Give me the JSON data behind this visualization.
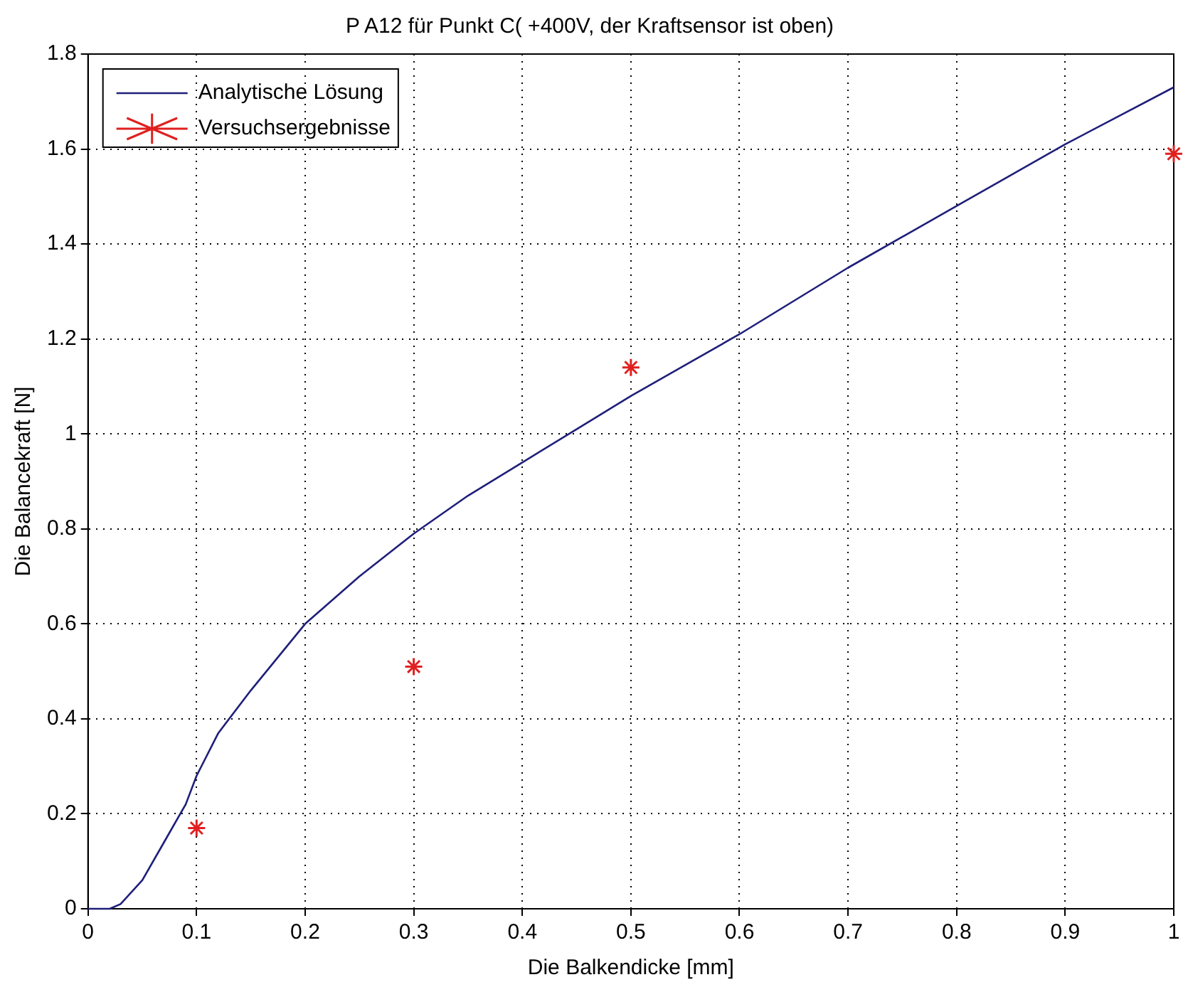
{
  "chart_data": {
    "type": "line",
    "title": "P A12 für Punkt C( +400V, der Kraftsensor ist oben)",
    "xlabel": "Die Balkendicke [mm]",
    "ylabel": "Die Balancekraft [N]",
    "xlim": [
      0,
      1
    ],
    "ylim": [
      0,
      1.8
    ],
    "xticks": [
      0,
      0.1,
      0.2,
      0.3,
      0.4,
      0.5,
      0.6,
      0.7,
      0.8,
      0.9,
      1
    ],
    "yticks": [
      0,
      0.2,
      0.4,
      0.6,
      0.8,
      1,
      1.2,
      1.4,
      1.6,
      1.8
    ],
    "grid": true,
    "legend": "top left",
    "series": [
      {
        "name": "Analytische Lösung",
        "type": "line",
        "color": "#1f1f7a",
        "marker": "none",
        "line_style": "solid",
        "x": [
          0,
          0.02,
          0.03,
          0.05,
          0.07,
          0.09,
          0.1,
          0.12,
          0.15,
          0.2,
          0.25,
          0.3,
          0.35,
          0.4,
          0.45,
          0.5,
          0.6,
          0.7,
          0.8,
          0.9,
          1
        ],
        "values": [
          0,
          0,
          0.01,
          0.06,
          0.14,
          0.22,
          0.28,
          0.37,
          0.46,
          0.6,
          0.7,
          0.79,
          0.87,
          0.94,
          1.01,
          1.08,
          1.21,
          1.35,
          1.48,
          1.61,
          1.73
        ]
      },
      {
        "name": "Versuchsergebnisse",
        "type": "scatter",
        "color": "#e02020",
        "marker": "cross",
        "x": [
          0.1,
          0.3,
          0.5,
          1
        ],
        "values": [
          0.17,
          0.51,
          1.14,
          1.59
        ]
      }
    ]
  }
}
